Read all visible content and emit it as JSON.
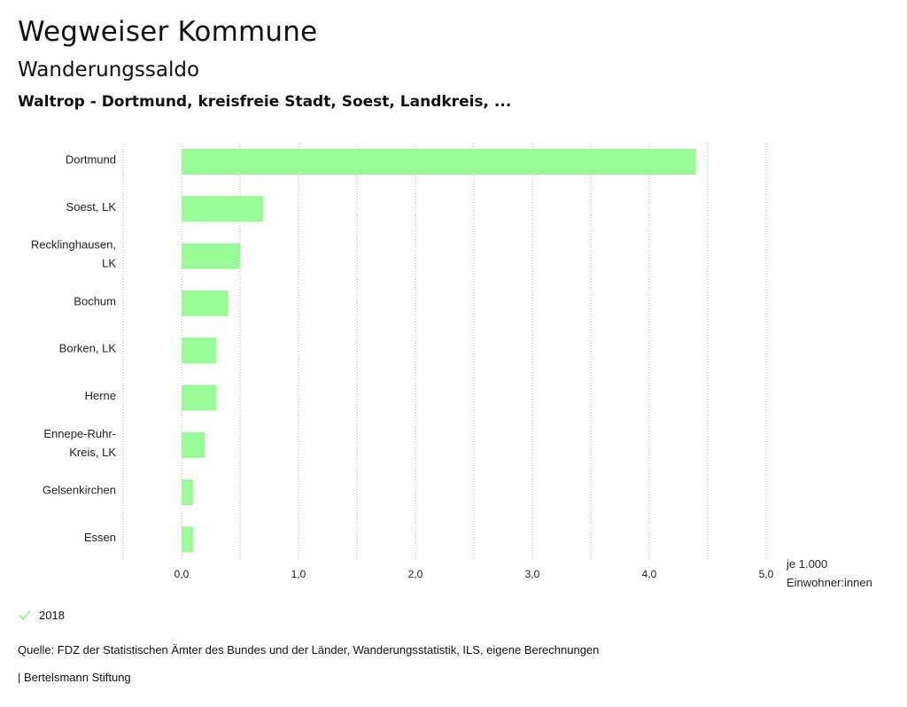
{
  "header": {
    "title": "Wegweiser Kommune",
    "subtitle": "Wanderungssaldo",
    "region": "Waltrop - Dortmund, kreisfreie Stadt, Soest, Landkreis, ..."
  },
  "chart_data": {
    "type": "bar",
    "orientation": "horizontal",
    "categories": [
      [
        "Dortmund"
      ],
      [
        "Soest, LK"
      ],
      [
        "Recklinghausen,",
        "LK"
      ],
      [
        "Bochum"
      ],
      [
        "Borken, LK"
      ],
      [
        "Herne"
      ],
      [
        "Ennepe-Ruhr-",
        "Kreis, LK"
      ],
      [
        "Gelsenkirchen"
      ],
      [
        "Essen"
      ]
    ],
    "series": [
      {
        "name": "2018",
        "color": "#98fb98",
        "values": [
          4.4,
          0.7,
          0.5,
          0.4,
          0.3,
          0.3,
          0.2,
          0.1,
          0.1
        ]
      }
    ],
    "xlim": [
      -0.5,
      5.0
    ],
    "xticks": [
      0,
      1,
      2,
      3,
      4,
      5
    ],
    "xtick_labels": [
      "0,0",
      "1,0",
      "2,0",
      "3,0",
      "4,0",
      "5,0"
    ],
    "xlabel": [
      "je 1.000",
      "Einwohner:innen"
    ],
    "grid": true
  },
  "legend": {
    "label": "2018",
    "color": "#98fb98"
  },
  "footer": {
    "source": "Quelle: FDZ der Statistischen Ämter des Bundes und der Länder, Wanderungsstatistik, ILS, eigene Berechnungen",
    "credit": "| Bertelsmann Stiftung"
  }
}
